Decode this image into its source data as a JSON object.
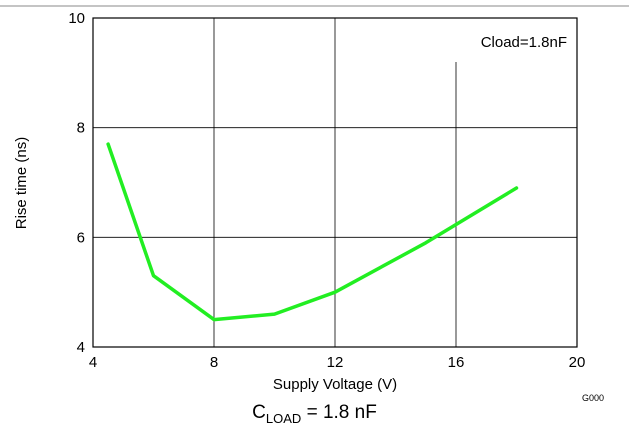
{
  "chart_data": {
    "type": "line",
    "xlabel": "Supply Voltage (V)",
    "ylabel": "Rise time (ns)",
    "xlim": [
      4,
      20
    ],
    "ylim": [
      4,
      10
    ],
    "x_ticks": [
      4,
      8,
      12,
      16,
      20
    ],
    "y_ticks": [
      4,
      6,
      8,
      10
    ],
    "grid": true,
    "annotation": "Cload=1.8nF",
    "figure_code": "G000",
    "series": [
      {
        "color": "#22ee22",
        "x": [
          4.5,
          6,
          8,
          10,
          12,
          15,
          18
        ],
        "y": [
          7.7,
          5.3,
          4.5,
          4.6,
          5.0,
          5.9,
          6.9
        ]
      }
    ]
  },
  "caption": {
    "main": "C",
    "sub": "LOAD",
    "rest": " = 1.8 nF"
  }
}
